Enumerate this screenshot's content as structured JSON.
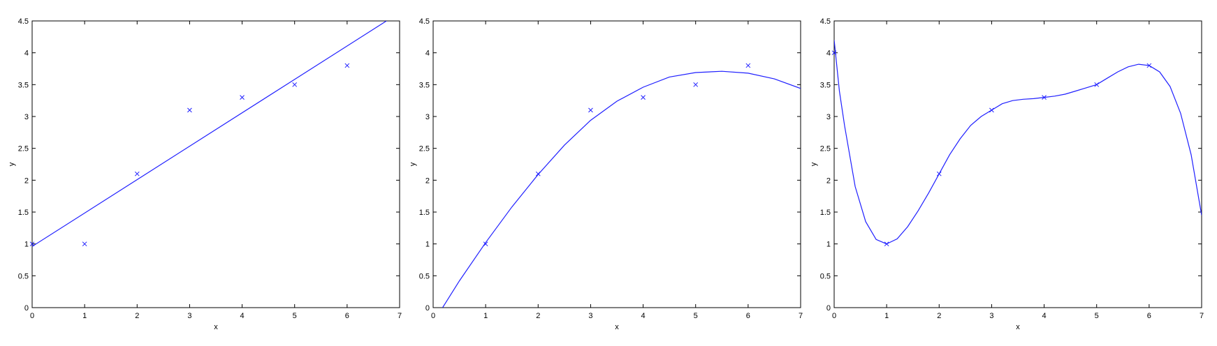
{
  "colors": {
    "series": "#1f1fff",
    "axes": "#000000",
    "background": "#ffffff"
  },
  "chart_data": [
    {
      "type": "scatter",
      "xlabel": "x",
      "ylabel": "y",
      "xlim": [
        0,
        7
      ],
      "ylim": [
        0,
        4.5
      ],
      "xticks": [
        "0",
        "1",
        "2",
        "3",
        "4",
        "5",
        "6",
        "7"
      ],
      "yticks": [
        "0",
        "0.5",
        "1",
        "1.5",
        "2",
        "2.5",
        "3",
        "3.5",
        "4",
        "4.5"
      ],
      "grid": false,
      "series": [
        {
          "kind": "markers",
          "marker": "x",
          "x": [
            0,
            1,
            2,
            3,
            4,
            5,
            6
          ],
          "y": [
            1,
            1,
            2.1,
            3.1,
            3.3,
            3.5,
            3.8
          ]
        },
        {
          "kind": "line",
          "x": [
            0,
            6.75
          ],
          "y": [
            0.96,
            4.5
          ]
        }
      ]
    },
    {
      "type": "scatter",
      "xlabel": "x",
      "ylabel": "y",
      "xlim": [
        0,
        7
      ],
      "ylim": [
        0,
        4.5
      ],
      "xticks": [
        "0",
        "1",
        "2",
        "3",
        "4",
        "5",
        "6",
        "7"
      ],
      "yticks": [
        "0",
        "0.5",
        "1",
        "1.5",
        "2",
        "2.5",
        "3",
        "3.5",
        "4",
        "4.5"
      ],
      "grid": false,
      "series": [
        {
          "kind": "markers",
          "marker": "x",
          "x": [
            1,
            2,
            3,
            4,
            5,
            6
          ],
          "y": [
            1,
            2.1,
            3.1,
            3.3,
            3.5,
            3.8
          ]
        },
        {
          "kind": "line",
          "x": [
            0.18,
            0.5,
            1,
            1.5,
            2,
            2.5,
            3,
            3.5,
            4,
            4.5,
            5,
            5.5,
            6,
            6.5,
            7
          ],
          "y": [
            0,
            0.42,
            1.02,
            1.58,
            2.09,
            2.55,
            2.94,
            3.24,
            3.46,
            3.62,
            3.69,
            3.71,
            3.68,
            3.59,
            3.44
          ]
        }
      ]
    },
    {
      "type": "scatter",
      "xlabel": "x",
      "ylabel": "y",
      "xlim": [
        0,
        7
      ],
      "ylim": [
        0,
        4.5
      ],
      "xticks": [
        "0",
        "1",
        "2",
        "3",
        "4",
        "5",
        "6",
        "7"
      ],
      "yticks": [
        "0",
        "0.5",
        "1",
        "1.5",
        "2",
        "2.5",
        "3",
        "3.5",
        "4",
        "4.5"
      ],
      "grid": false,
      "series": [
        {
          "kind": "markers",
          "marker": "x",
          "x": [
            0,
            1,
            2,
            3,
            4,
            5,
            6
          ],
          "y": [
            4,
            1,
            2.1,
            3.1,
            3.3,
            3.5,
            3.8
          ]
        },
        {
          "kind": "line",
          "x": [
            0,
            0.1,
            0.2,
            0.4,
            0.6,
            0.8,
            1,
            1.2,
            1.4,
            1.6,
            1.8,
            2,
            2.2,
            2.4,
            2.6,
            2.8,
            3,
            3.2,
            3.4,
            3.6,
            3.8,
            4,
            4.2,
            4.4,
            4.6,
            4.8,
            5,
            5.2,
            5.4,
            5.6,
            5.8,
            6,
            6.2,
            6.4,
            6.6,
            6.8,
            7
          ],
          "y": [
            4.2,
            3.4,
            2.85,
            1.9,
            1.35,
            1.07,
            1.0,
            1.08,
            1.27,
            1.52,
            1.8,
            2.1,
            2.4,
            2.65,
            2.86,
            3.0,
            3.1,
            3.2,
            3.25,
            3.27,
            3.28,
            3.3,
            3.32,
            3.35,
            3.4,
            3.45,
            3.5,
            3.6,
            3.7,
            3.78,
            3.82,
            3.8,
            3.7,
            3.47,
            3.05,
            2.4,
            1.45
          ]
        }
      ]
    }
  ]
}
